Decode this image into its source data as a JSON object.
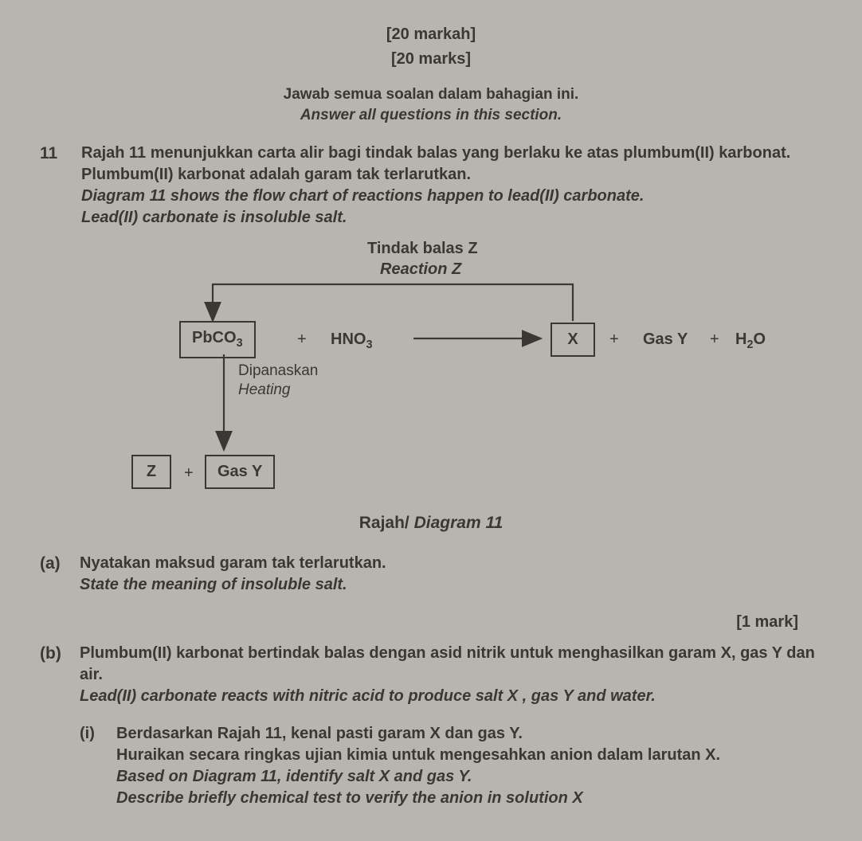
{
  "marks_bm": "[20 markah]",
  "marks_en": "[20 marks]",
  "instr_bm": "Jawab semua soalan dalam bahagian ini.",
  "instr_en": "Answer all questions in this section.",
  "q11": {
    "num": "11",
    "bm_l1": "Rajah 11 menunjukkan carta alir bagi tindak balas yang berlaku ke atas plumbum(II) karbonat. Plumbum(II) karbonat adalah garam tak terlarutkan.",
    "en_l1": "Diagram 11 shows the flow chart of reactions happen to lead(II) carbonate.",
    "en_l2": "Lead(II) carbonate is insoluble salt."
  },
  "flow": {
    "top_bm": "Tindak balas Z",
    "top_en": "Reaction Z",
    "pbco3_html": "PbCO<sub>3</sub>",
    "plus1": "+",
    "hno3_html": "HNO<sub>3</sub>",
    "X": "X",
    "plus2": "+",
    "gasY_r": "Gas Y",
    "plus3": "+",
    "h2o_html": "H<sub>2</sub>O",
    "heat_bm": "Dipanaskan",
    "heat_en": "Heating",
    "Z": "Z",
    "plusZ": "+",
    "gasY_b": "Gas Y"
  },
  "caption": {
    "bm": "Rajah/ ",
    "en": "Diagram 11"
  },
  "a": {
    "lbl": "(a)",
    "bm": "Nyatakan maksud garam tak terlarutkan.",
    "en": "State the meaning of insoluble salt.",
    "mark": "[1 mark]"
  },
  "b": {
    "lbl": "(b)",
    "bm": "Plumbum(II) karbonat bertindak balas dengan asid nitrik untuk menghasilkan garam X, gas Y dan air.",
    "en": "Lead(II) carbonate reacts with nitric acid to produce salt X , gas Y and water."
  },
  "bi": {
    "lbl": "(i)",
    "bm1": "Berdasarkan Rajah 11, kenal pasti garam X dan gas Y.",
    "bm2": "Huraikan secara ringkas ujian kimia untuk mengesahkan anion dalam larutan X.",
    "en1": "Based on Diagram 11, identify salt X and gas Y.",
    "en2": "Describe briefly chemical test to verify the anion in solution X"
  },
  "svg": {
    "stroke": "#3a3834",
    "width": 2.2
  }
}
